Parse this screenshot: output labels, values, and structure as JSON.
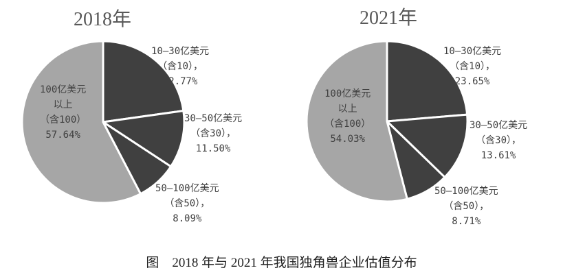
{
  "caption": "图　2018 年与 2021 年我国独角兽企业估值分布",
  "colors": {
    "dark": "#404040",
    "light": "#a6a6a6",
    "separator": "#ffffff"
  },
  "chart_data": [
    {
      "type": "pie",
      "title": "2018年",
      "categories": [
        "10—30亿美元（含10）",
        "30—50亿美元（含30）",
        "50—100亿美元（含50）",
        "100亿美元以上（含100）"
      ],
      "values": [
        22.77,
        11.5,
        8.09,
        57.64
      ],
      "labels": [
        {
          "lines": [
            "10—30亿美元",
            "（含10），",
            "22.77%"
          ]
        },
        {
          "lines": [
            "30—50亿美元",
            "（含30），",
            "11.50%"
          ]
        },
        {
          "lines": [
            "50—100亿美元",
            "（含50），",
            "8.09%"
          ]
        },
        {
          "lines": [
            "100亿美元",
            "以上",
            "（含100）",
            "57.64%"
          ]
        }
      ]
    },
    {
      "type": "pie",
      "title": "2021年",
      "categories": [
        "10—30亿美元（含10）",
        "30—50亿美元（含30）",
        "50—100亿美元（含50）",
        "100亿美元以上（含100）"
      ],
      "values": [
        23.65,
        13.61,
        8.71,
        54.03
      ],
      "labels": [
        {
          "lines": [
            "10—30亿美元",
            "（含10），",
            "23.65%"
          ]
        },
        {
          "lines": [
            "30—50亿美元",
            "（含30），",
            "13.61%"
          ]
        },
        {
          "lines": [
            "50—100亿美元",
            "（含50），",
            "8.71%"
          ]
        },
        {
          "lines": [
            "100亿美元",
            "以上",
            "（含100）",
            "54.03%"
          ]
        }
      ]
    }
  ]
}
